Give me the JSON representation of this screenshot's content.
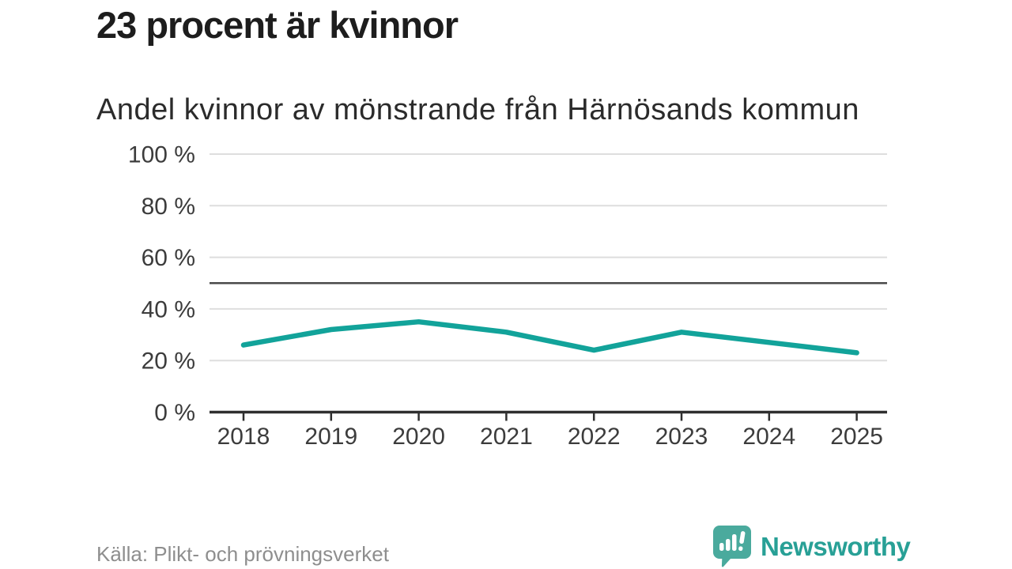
{
  "header": {
    "title": "23 procent är kvinnor",
    "subtitle": "Andel kvinnor av mönstrande från Härnösands kommun"
  },
  "chart_data": {
    "type": "line",
    "title": "23 procent är kvinnor",
    "subtitle": "Andel kvinnor av mönstrande från Härnösands kommun",
    "categories": [
      "2018",
      "2019",
      "2020",
      "2021",
      "2022",
      "2023",
      "2024",
      "2025"
    ],
    "series": [
      {
        "name": "Andel kvinnor av mönstrande",
        "color": "#12a39a",
        "values": [
          26,
          32,
          35,
          31,
          24,
          31,
          27,
          23
        ]
      }
    ],
    "xlabel": "",
    "ylabel": "",
    "ylim": [
      0,
      100
    ],
    "y_ticks": [
      0,
      20,
      40,
      60,
      80,
      100
    ],
    "y_tick_format": "{v} %",
    "reference_line": {
      "value": 50,
      "color": "#4a4a4a"
    },
    "grid": true,
    "grid_color": "#dedede",
    "axis_color": "#2f2f2f",
    "tick_label_color": "#3c3c3c",
    "legend_position": "none"
  },
  "footer": {
    "source": "Källa: Plikt- och prövningsverket",
    "brand": "Newsworthy",
    "brand_text_color": "#28a096",
    "brand_icon_color": "#4aaa9d",
    "brand_icon": "bar-chart-speech-bubble-icon"
  }
}
